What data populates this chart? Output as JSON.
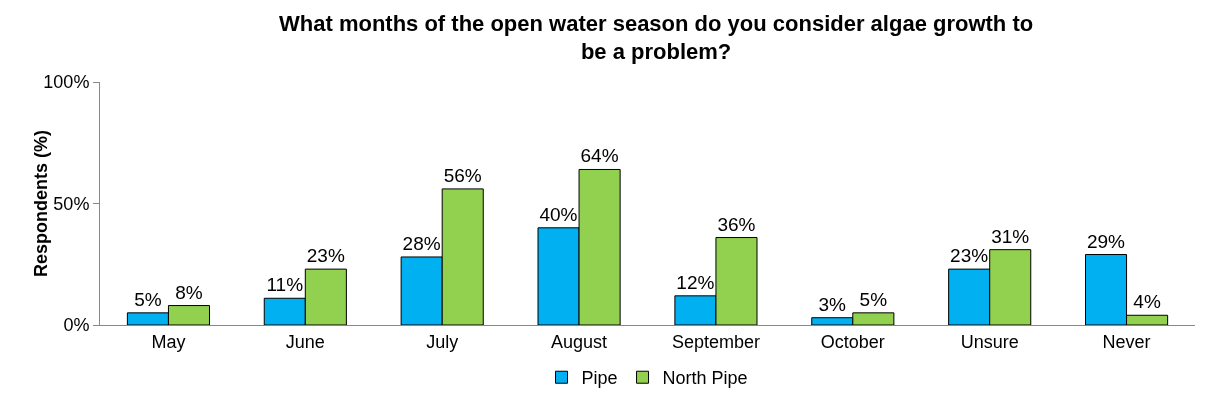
{
  "chart_data": {
    "type": "bar",
    "title": "What months of the open water season do you consider algae growth to be a problem?",
    "ylabel": "Respondents (%)",
    "categories": [
      "May",
      "June",
      "July",
      "August",
      "September",
      "October",
      "Unsure",
      "Never"
    ],
    "series": [
      {
        "name": "Pipe",
        "color": "#00b0f0",
        "values": [
          5,
          11,
          28,
          40,
          12,
          3,
          23,
          29
        ],
        "value_labels": [
          "5%",
          "11%",
          "28%",
          "40%",
          "12%",
          "3%",
          "23%",
          "29%"
        ]
      },
      {
        "name": "North Pipe",
        "color": "#92d050",
        "values": [
          8,
          23,
          56,
          64,
          36,
          5,
          31,
          4
        ],
        "value_labels": [
          "8%",
          "23%",
          "56%",
          "64%",
          "36%",
          "5%",
          "31%",
          "4%"
        ]
      }
    ],
    "ylim": [
      0,
      100
    ],
    "yticks": [
      {
        "value": 0,
        "label": "0%"
      },
      {
        "value": 50,
        "label": "50%"
      },
      {
        "value": 100,
        "label": "100%"
      }
    ],
    "grid": false,
    "legend": "bottom"
  }
}
